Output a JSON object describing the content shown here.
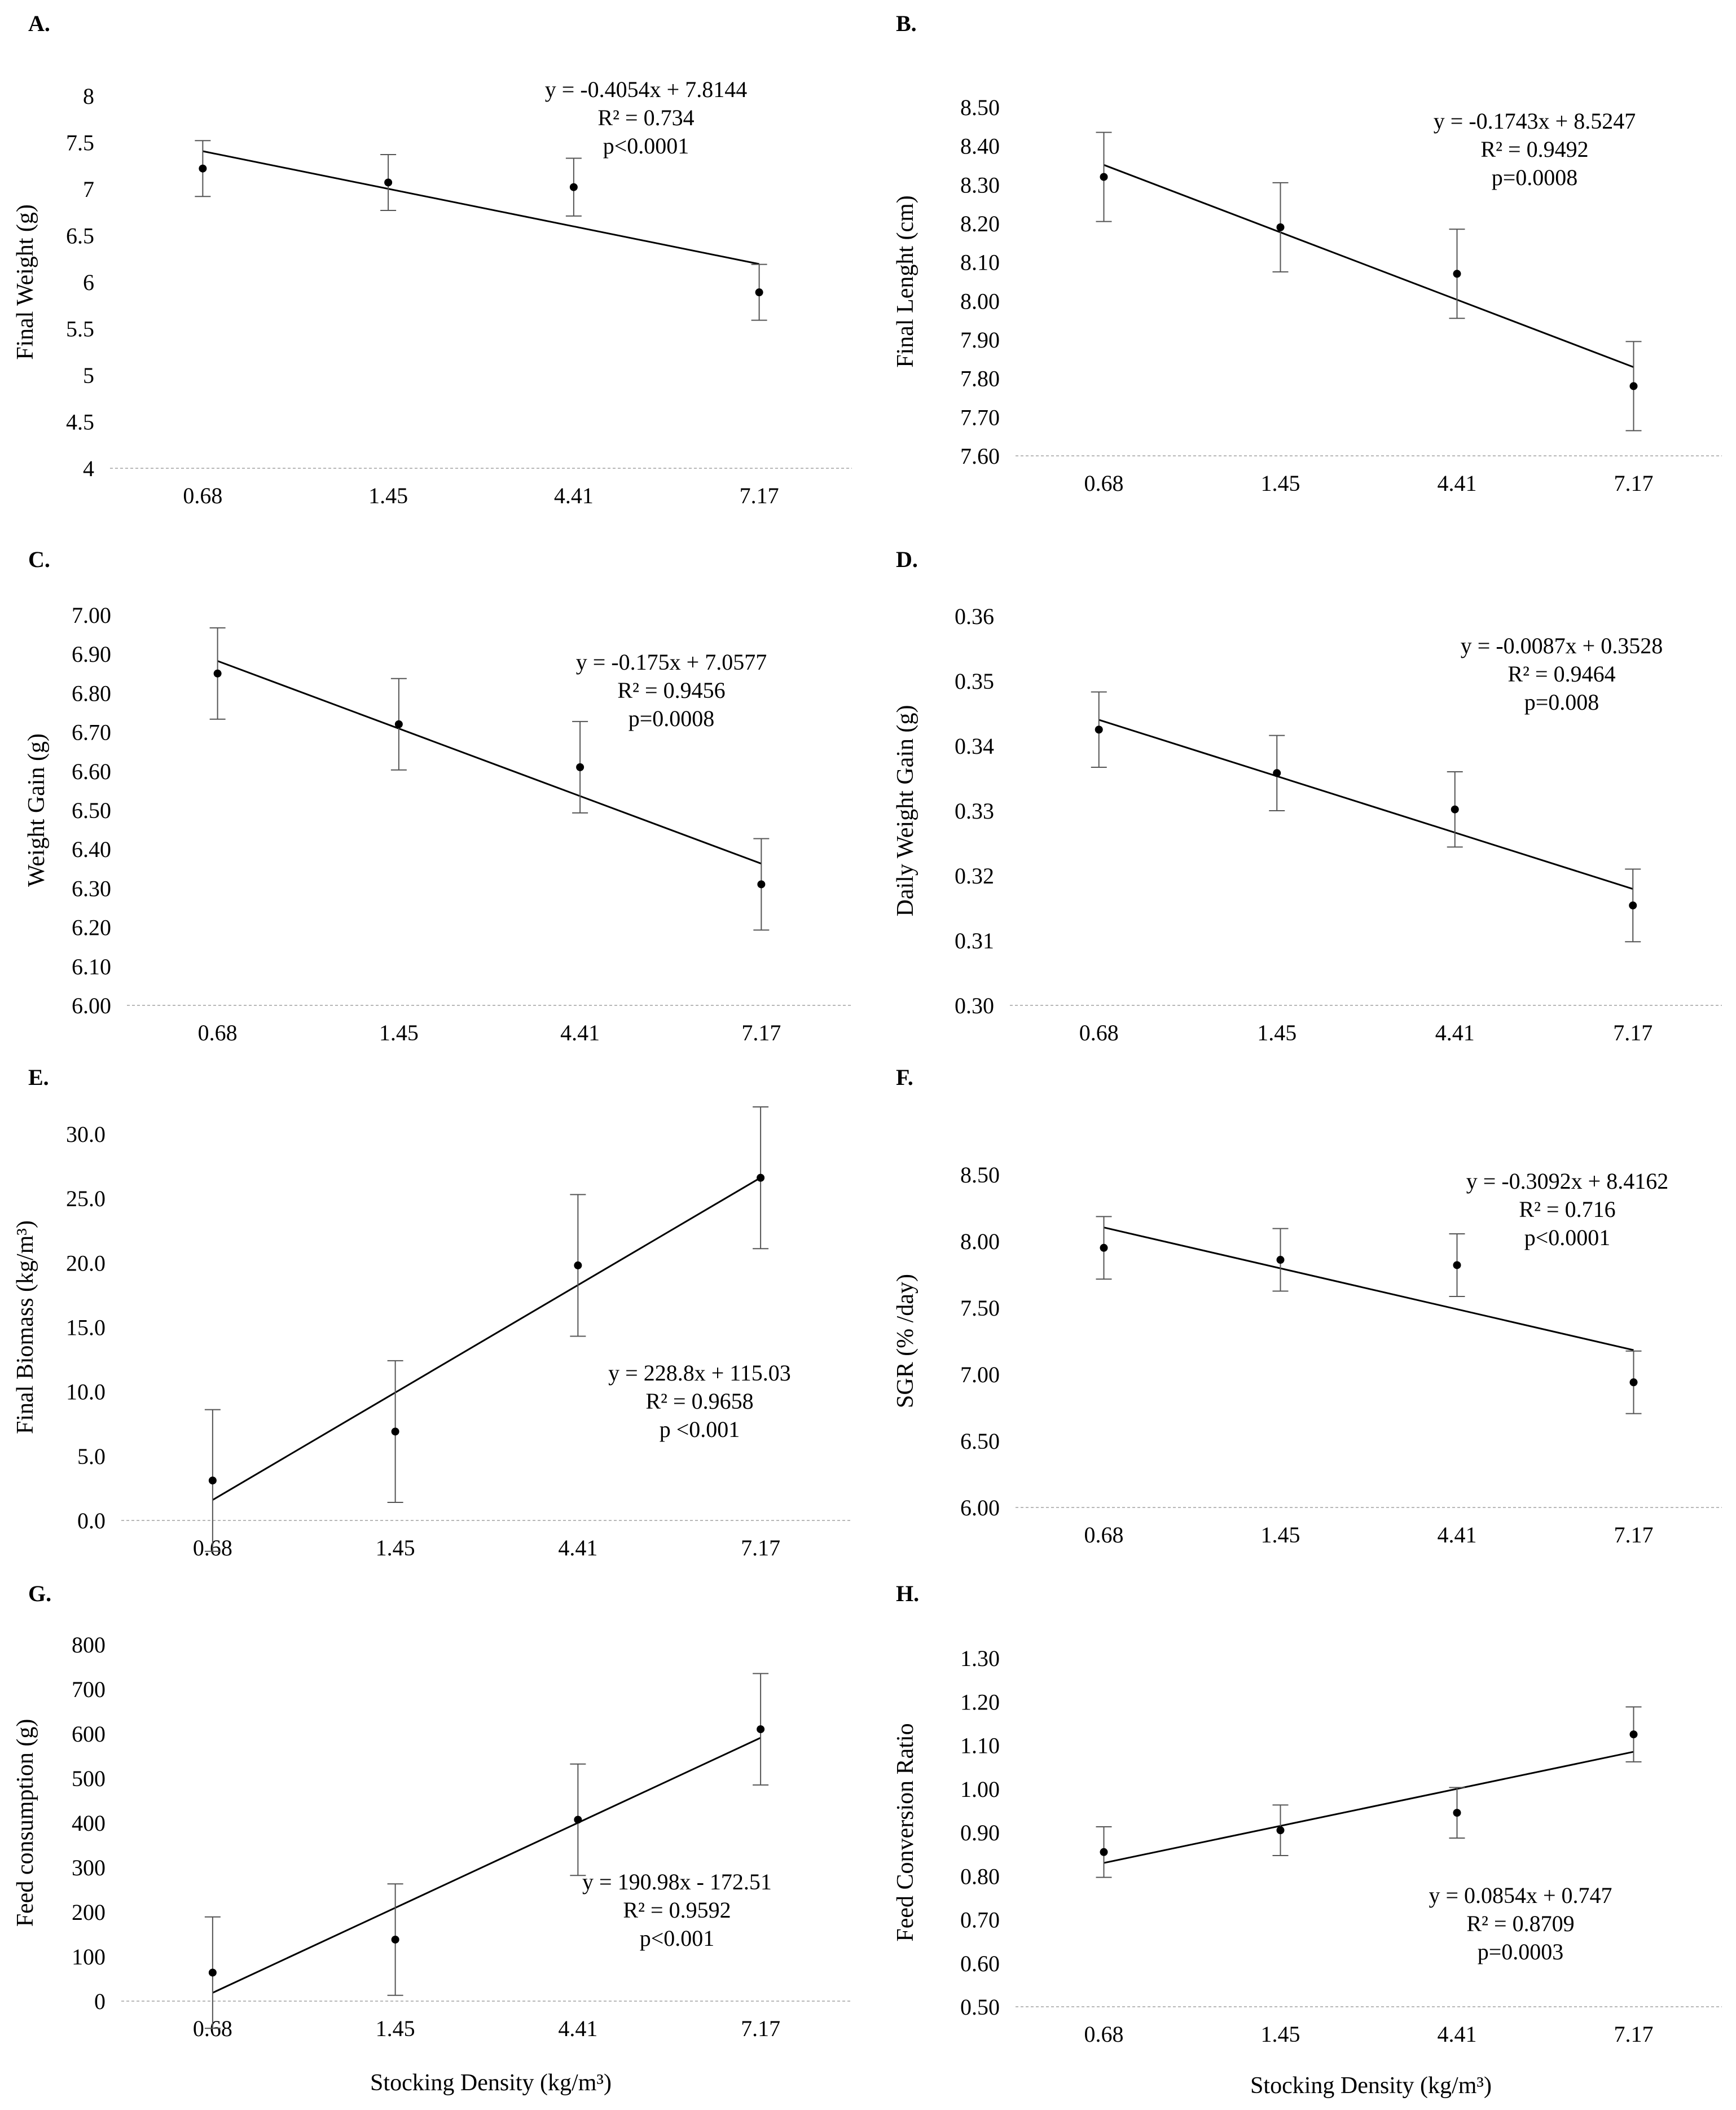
{
  "x_axis_label": "Stocking Density (kg/m³)",
  "chart_data": [
    {
      "panel": "A.",
      "type": "scatter",
      "categories": [
        "0.68",
        "1.45",
        "4.41",
        "7.17"
      ],
      "ylabel": "Final Weight (g)",
      "ylim": [
        4,
        8
      ],
      "yticks": [
        "4",
        "4.5",
        "5",
        "5.5",
        "6",
        "6.5",
        "7",
        "7.5",
        "8"
      ],
      "values": [
        7.22,
        7.07,
        7.02,
        5.89
      ],
      "errors": [
        0.3,
        0.3,
        0.31,
        0.3
      ],
      "trend": {
        "slope": -0.4054,
        "intercept": 7.8144
      },
      "annotation": [
        "y = -0.4054x + 7.8144",
        "R² = 0.734",
        "p<0.0001"
      ]
    },
    {
      "panel": "B.",
      "type": "scatter",
      "categories": [
        "0.68",
        "1.45",
        "4.41",
        "7.17"
      ],
      "ylabel": "Final Lenght (cm)",
      "ylim": [
        7.6,
        8.5
      ],
      "yticks": [
        "7.60",
        "7.70",
        "7.80",
        "7.90",
        "8.00",
        "8.10",
        "8.20",
        "8.30",
        "8.40",
        "8.50"
      ],
      "values": [
        8.32,
        8.19,
        8.07,
        7.78
      ],
      "errors": [
        0.115,
        0.115,
        0.115,
        0.115
      ],
      "trend": {
        "slope": -0.1743,
        "intercept": 8.5247
      },
      "annotation": [
        "y = -0.1743x + 8.5247",
        "R² = 0.9492",
        "p=0.0008"
      ]
    },
    {
      "panel": "C.",
      "type": "scatter",
      "categories": [
        "0.68",
        "1.45",
        "4.41",
        "7.17"
      ],
      "ylabel": "Weight Gain (g)",
      "ylim": [
        6.0,
        7.0
      ],
      "yticks": [
        "6.00",
        "6.10",
        "6.20",
        "6.30",
        "6.40",
        "6.50",
        "6.60",
        "6.70",
        "6.80",
        "6.90",
        "7.00"
      ],
      "values": [
        6.85,
        6.72,
        6.61,
        6.31
      ],
      "errors": [
        0.117,
        0.117,
        0.117,
        0.117
      ],
      "trend": {
        "slope": -0.175,
        "intercept": 7.0577
      },
      "annotation": [
        "y = -0.175x + 7.0577",
        "R² = 0.9456",
        "p=0.0008"
      ]
    },
    {
      "panel": "D.",
      "type": "scatter",
      "categories": [
        "0.68",
        "1.45",
        "4.41",
        "7.17"
      ],
      "ylabel": "Daily Weight Gain (g)",
      "ylim": [
        0.3,
        0.36
      ],
      "yticks": [
        "0.30",
        "0.31",
        "0.32",
        "0.33",
        "0.34",
        "0.35",
        "0.36"
      ],
      "values": [
        0.3425,
        0.3358,
        0.3302,
        0.3154
      ],
      "errors": [
        0.0058,
        0.0058,
        0.0058,
        0.0056
      ],
      "trend": {
        "slope": -0.0087,
        "intercept": 0.3528
      },
      "annotation": [
        "y = -0.0087x + 0.3528",
        "R² = 0.9464",
        "p=0.008"
      ]
    },
    {
      "panel": "E.",
      "type": "scatter",
      "categories": [
        "0.68",
        "1.45",
        "4.41",
        "7.17"
      ],
      "ylabel": "Final Biomass (kg/m³)",
      "ylim": [
        0,
        30
      ],
      "yticks": [
        "0.0",
        "5.0",
        "10.0",
        "15.0",
        "20.0",
        "25.0",
        "30.0"
      ],
      "values": [
        3.1,
        6.9,
        19.8,
        26.6
      ],
      "errors": [
        5.5,
        5.5,
        5.5,
        5.5
      ],
      "trend": {
        "slope": 228.8,
        "intercept": 115.03
      },
      "annotation": [
        "y = 228.8x + 115.03",
        "R² = 0.9658",
        "p <0.001"
      ]
    },
    {
      "panel": "F.",
      "type": "scatter",
      "categories": [
        "0.68",
        "1.45",
        "4.41",
        "7.17"
      ],
      "ylabel": "SGR (% /day)",
      "ylim": [
        6.0,
        8.5
      ],
      "yticks": [
        "6.00",
        "6.50",
        "7.00",
        "7.50",
        "8.00",
        "8.50"
      ],
      "values": [
        7.95,
        7.86,
        7.82,
        6.94
      ],
      "errors": [
        0.235,
        0.235,
        0.235,
        0.235
      ],
      "trend": {
        "slope": -0.3092,
        "intercept": 8.4162
      },
      "annotation": [
        "y = -0.3092x + 8.4162",
        "R² = 0.716",
        "p<0.0001"
      ]
    },
    {
      "panel": "G.",
      "type": "scatter",
      "categories": [
        "0.68",
        "1.45",
        "4.41",
        "7.17"
      ],
      "ylabel": "Feed consumption (g)",
      "ylim": [
        0,
        800
      ],
      "yticks": [
        "0",
        "100",
        "200",
        "300",
        "400",
        "500",
        "600",
        "700",
        "800"
      ],
      "values": [
        64,
        138,
        407,
        610
      ],
      "errors": [
        125,
        125,
        125,
        125
      ],
      "trend": {
        "slope": 190.98,
        "intercept": -172.51
      },
      "annotation": [
        "y = 190.98x - 172.51",
        "R² = 0.9592",
        "p<0.001"
      ]
    },
    {
      "panel": "H.",
      "type": "scatter",
      "categories": [
        "0.68",
        "1.45",
        "4.41",
        "7.17"
      ],
      "ylabel": "Feed Conversion Ratio",
      "ylim": [
        0.5,
        1.3
      ],
      "yticks": [
        "0.50",
        "0.60",
        "0.70",
        "0.80",
        "0.90",
        "1.00",
        "1.10",
        "1.20",
        "1.30"
      ],
      "values": [
        0.855,
        0.905,
        0.945,
        1.125
      ],
      "errors": [
        0.058,
        0.058,
        0.058,
        0.063
      ],
      "trend": {
        "slope": 0.0854,
        "intercept": 0.747
      },
      "annotation": [
        "y = 0.0854x + 0.747",
        "R² = 0.8709",
        "p=0.0003"
      ]
    }
  ]
}
